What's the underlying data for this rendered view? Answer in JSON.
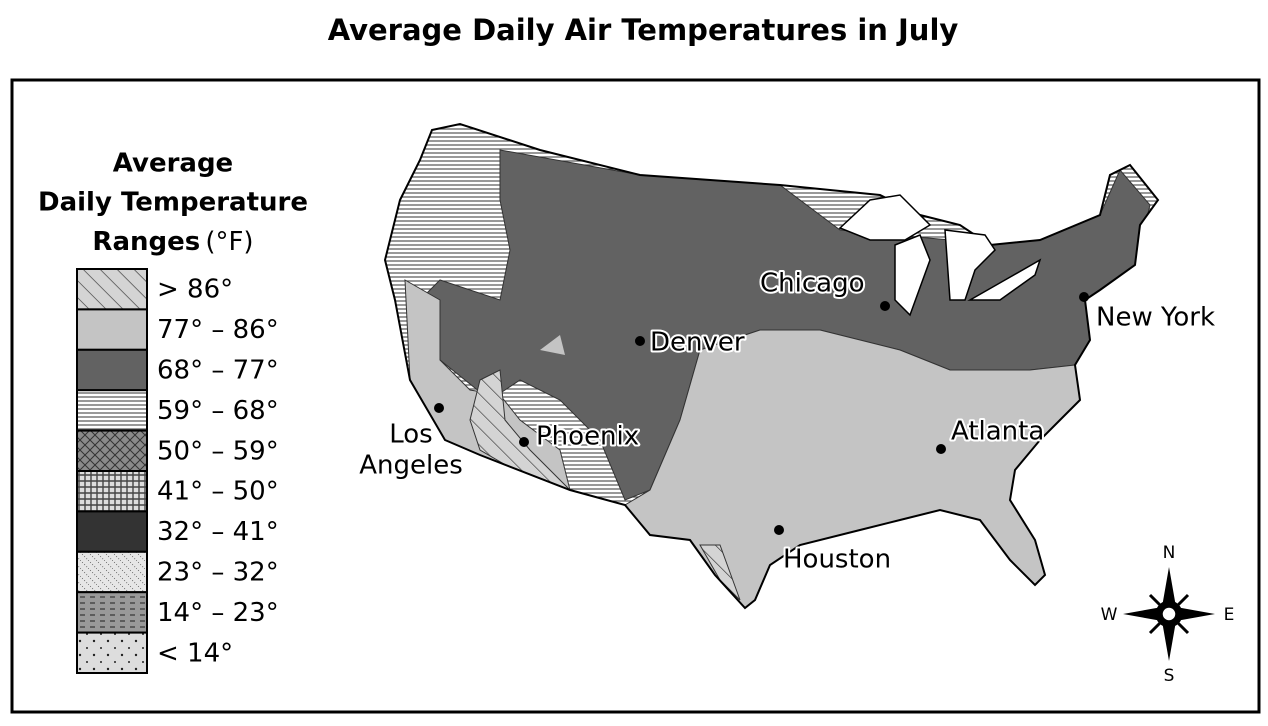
{
  "title": "Average Daily Air Temperatures in July",
  "legend": {
    "title_lines": [
      "Average",
      "Daily Temperature",
      "Ranges"
    ],
    "unit": "(°F)",
    "items": [
      "> 86°",
      "77° – 86°",
      "68° – 77°",
      "59° – 68°",
      "50° – 59°",
      "41° – 50°",
      "32° – 41°",
      "23° – 32°",
      "14° – 23°",
      "< 14°"
    ]
  },
  "cities": [
    {
      "label": "Chicago"
    },
    {
      "label": "New York"
    },
    {
      "label": "Denver"
    },
    {
      "label_lines": [
        "Los",
        "Angeles"
      ]
    },
    {
      "label": "Phoenix"
    },
    {
      "label": "Atlanta"
    },
    {
      "label": "Houston"
    }
  ],
  "compass": {
    "n": "N",
    "e": "E",
    "s": "S",
    "w": "W"
  }
}
